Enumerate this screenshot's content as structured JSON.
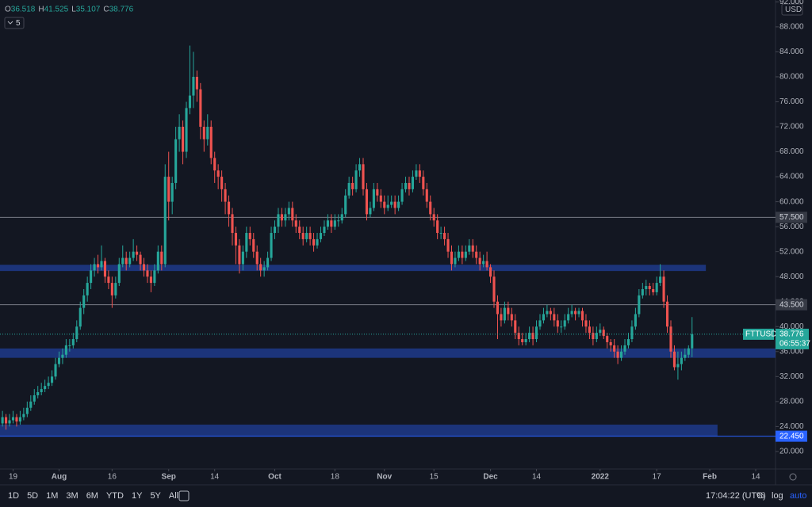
{
  "chart_data": {
    "type": "candlestick",
    "symbol": "FTTUSD",
    "currency": "USD",
    "indicator_count": "5",
    "ohlc_keys": [
      "O",
      "H",
      "L",
      "C"
    ],
    "up_color": "#26a69a",
    "down_color": "#ef5350",
    "grid": false,
    "ylim": [
      17.2,
      92.3
    ],
    "yticks": [
      {
        "value": 20,
        "label": "20.000"
      },
      {
        "value": 24,
        "label": "24.000"
      },
      {
        "value": 28,
        "label": "28.000"
      },
      {
        "value": 32,
        "label": "32.000"
      },
      {
        "value": 36,
        "label": "36.000"
      },
      {
        "value": 40,
        "label": "40.000"
      },
      {
        "value": 44,
        "label": "44.000"
      },
      {
        "value": 48,
        "label": "48.000"
      },
      {
        "value": 52,
        "label": "52.000"
      },
      {
        "value": 56,
        "label": "56.000"
      },
      {
        "value": 60,
        "label": "60.000"
      },
      {
        "value": 64,
        "label": "64.000"
      },
      {
        "value": 68,
        "label": "68.000"
      },
      {
        "value": 72,
        "label": "72.000"
      },
      {
        "value": 76,
        "label": "76.000"
      },
      {
        "value": 80,
        "label": "80.000"
      },
      {
        "value": 84,
        "label": "84.000"
      },
      {
        "value": 88,
        "label": "88.000"
      },
      {
        "value": 92,
        "label": "92.000"
      }
    ],
    "xlim": [
      -0.7,
      218.6
    ],
    "xticks": [
      {
        "value": 3,
        "label": "19"
      },
      {
        "value": 16,
        "label": "Aug"
      },
      {
        "value": 31,
        "label": "16"
      },
      {
        "value": 47,
        "label": "Sep"
      },
      {
        "value": 60,
        "label": "14"
      },
      {
        "value": 77,
        "label": "Oct"
      },
      {
        "value": 94,
        "label": "18"
      },
      {
        "value": 108,
        "label": "Nov"
      },
      {
        "value": 122,
        "label": "15"
      },
      {
        "value": 138,
        "label": "Dec"
      },
      {
        "value": 151,
        "label": "14"
      },
      {
        "value": 169,
        "label": "2022"
      },
      {
        "value": 185,
        "label": "17"
      },
      {
        "value": 200,
        "label": "Feb"
      },
      {
        "value": 213,
        "label": "14"
      }
    ],
    "levels": [
      {
        "value": 57.5,
        "label": "57.500",
        "color": "#787b86"
      },
      {
        "value": 43.5,
        "label": "43.500",
        "color": "#787b86"
      }
    ],
    "zones": [
      {
        "low": 48.9,
        "high": 49.9,
        "end": 198.9,
        "color": "#1e3a8a"
      },
      {
        "low": 35,
        "high": 36.5,
        "color": "#1e3a8a"
      },
      {
        "low": 22.45,
        "high": 24.3,
        "end": 202.2,
        "color": "#1e3a8a",
        "label": "22.450"
      }
    ],
    "countdown": "06:55:37",
    "candles": [
      [
        24.5,
        26.5,
        24,
        25.5
      ],
      [
        25.5,
        26,
        23.5,
        24.5
      ],
      [
        24.5,
        26,
        24,
        25
      ],
      [
        25,
        26.5,
        24.5,
        25.5
      ],
      [
        25.5,
        26,
        24,
        24.8
      ],
      [
        24.8,
        26.5,
        24.3,
        25.5
      ],
      [
        25.5,
        27,
        25,
        26
      ],
      [
        26,
        28,
        25.5,
        27
      ],
      [
        27,
        29,
        26.5,
        28
      ],
      [
        28,
        30,
        27.5,
        29
      ],
      [
        29,
        30.5,
        28.5,
        29.5
      ],
      [
        29.5,
        31,
        29,
        30
      ],
      [
        30,
        31.5,
        29.5,
        30.5
      ],
      [
        30.5,
        32,
        30,
        31
      ],
      [
        31,
        33,
        30.5,
        32
      ],
      [
        32,
        35,
        31.5,
        34
      ],
      [
        34,
        36,
        33.5,
        35
      ],
      [
        35,
        36.5,
        34,
        35.5
      ],
      [
        35.5,
        38,
        35,
        37
      ],
      [
        37,
        38,
        36,
        37
      ],
      [
        37,
        39,
        36.5,
        38
      ],
      [
        38,
        41,
        37.5,
        40
      ],
      [
        40,
        44,
        39.5,
        43
      ],
      [
        43,
        46,
        42,
        45
      ],
      [
        45,
        48,
        44,
        47
      ],
      [
        47,
        50,
        46,
        49
      ],
      [
        49,
        51,
        48,
        50
      ],
      [
        50,
        51.5,
        48.5,
        49.5
      ],
      [
        49.5,
        53,
        49,
        50.5
      ],
      [
        50.5,
        51,
        47,
        48
      ],
      [
        48,
        49,
        46,
        47
      ],
      [
        47,
        48,
        43,
        45
      ],
      [
        45,
        48,
        44.5,
        47
      ],
      [
        47,
        51,
        46.5,
        50
      ],
      [
        50,
        53,
        49.5,
        51
      ],
      [
        51,
        52,
        49,
        50
      ],
      [
        50,
        52,
        49.5,
        51
      ],
      [
        51,
        54,
        50.5,
        52
      ],
      [
        52,
        53,
        50.5,
        51.5
      ],
      [
        51.5,
        52,
        49,
        50
      ],
      [
        50,
        51,
        48,
        49
      ],
      [
        49,
        50,
        47,
        48
      ],
      [
        48,
        49,
        45.5,
        47
      ],
      [
        47,
        50,
        46.5,
        49
      ],
      [
        49,
        53,
        48.5,
        52
      ],
      [
        52,
        53,
        49,
        50
      ],
      [
        50,
        66,
        49.5,
        64
      ],
      [
        64,
        68,
        57,
        60
      ],
      [
        60,
        64,
        58,
        63
      ],
      [
        63,
        72,
        62,
        70
      ],
      [
        70,
        74,
        68,
        72
      ],
      [
        72,
        73,
        66,
        68
      ],
      [
        68,
        76,
        67,
        75
      ],
      [
        75,
        85,
        74,
        77
      ],
      [
        77,
        84,
        75,
        80
      ],
      [
        80,
        81,
        76,
        78
      ],
      [
        78,
        79,
        70,
        72
      ],
      [
        72,
        73,
        68,
        70
      ],
      [
        70,
        74,
        69,
        72
      ],
      [
        72,
        73,
        66,
        67
      ],
      [
        67,
        68,
        63,
        65
      ],
      [
        65,
        66,
        62,
        64
      ],
      [
        64,
        65,
        60,
        62
      ],
      [
        62,
        63,
        58,
        60
      ],
      [
        60,
        61,
        56,
        58
      ],
      [
        58,
        59,
        53,
        55
      ],
      [
        55,
        56,
        50,
        53
      ],
      [
        53,
        54,
        48.5,
        50
      ],
      [
        50,
        53,
        49,
        52
      ],
      [
        52,
        56,
        51,
        55
      ],
      [
        55,
        56,
        53,
        54
      ],
      [
        54,
        55,
        51,
        52
      ],
      [
        52,
        53,
        49,
        50
      ],
      [
        50,
        51,
        48,
        49
      ],
      [
        49,
        50.5,
        48,
        49.5
      ],
      [
        49.5,
        52,
        49,
        51
      ],
      [
        51,
        56,
        50.5,
        55
      ],
      [
        55,
        57,
        54,
        56
      ],
      [
        56,
        59,
        55,
        58
      ],
      [
        58,
        59,
        56,
        57
      ],
      [
        57,
        59,
        56,
        58
      ],
      [
        58,
        60,
        57,
        59
      ],
      [
        59,
        60,
        56,
        57
      ],
      [
        57,
        58,
        55,
        56
      ],
      [
        56,
        57,
        54,
        55
      ],
      [
        55,
        56,
        53,
        54
      ],
      [
        54,
        56,
        53.5,
        55
      ],
      [
        55,
        56,
        53,
        54
      ],
      [
        54,
        55,
        52,
        53
      ],
      [
        53,
        55,
        52.5,
        54
      ],
      [
        54,
        56,
        53.5,
        55
      ],
      [
        55,
        57,
        54.5,
        56
      ],
      [
        56,
        58,
        55.5,
        57
      ],
      [
        57,
        58,
        55,
        56
      ],
      [
        56,
        58,
        55.5,
        57
      ],
      [
        57,
        58,
        56,
        57
      ],
      [
        57,
        59,
        56.5,
        58
      ],
      [
        58,
        62,
        57.5,
        61
      ],
      [
        61,
        64,
        60.5,
        63
      ],
      [
        63,
        64,
        61,
        62
      ],
      [
        62,
        66,
        61.5,
        65
      ],
      [
        65,
        67,
        64,
        66
      ],
      [
        66,
        67,
        61,
        62
      ],
      [
        62,
        63,
        57,
        58
      ],
      [
        58,
        60,
        57.5,
        59
      ],
      [
        59,
        63,
        58.5,
        62
      ],
      [
        62,
        63,
        60,
        61
      ],
      [
        61,
        62,
        59,
        60
      ],
      [
        60,
        61,
        58,
        59
      ],
      [
        59,
        61,
        58.5,
        59.5
      ],
      [
        59.5,
        61,
        59,
        60
      ],
      [
        60,
        61,
        58,
        59
      ],
      [
        59,
        61,
        58.5,
        60
      ],
      [
        60,
        63,
        59.5,
        62
      ],
      [
        62,
        64,
        61.5,
        63
      ],
      [
        63,
        64,
        61,
        62
      ],
      [
        62,
        65,
        61.5,
        64
      ],
      [
        64,
        66,
        63.5,
        65
      ],
      [
        65,
        66,
        63,
        64
      ],
      [
        64,
        65,
        61,
        62
      ],
      [
        62,
        63,
        59,
        60
      ],
      [
        60,
        61,
        57,
        58
      ],
      [
        58,
        59,
        56,
        57
      ],
      [
        57,
        58,
        54,
        55
      ],
      [
        55,
        56,
        54,
        55
      ],
      [
        55,
        56,
        53,
        54
      ],
      [
        54,
        55,
        51,
        52
      ],
      [
        52,
        53,
        49,
        50
      ],
      [
        50,
        52,
        49.5,
        51
      ],
      [
        51,
        53,
        50.5,
        52
      ],
      [
        52,
        53,
        50,
        51
      ],
      [
        51,
        53,
        50.5,
        52
      ],
      [
        52,
        54,
        51.5,
        53
      ],
      [
        53,
        54,
        51,
        52
      ],
      [
        52,
        53,
        50,
        51
      ],
      [
        51,
        52,
        49,
        50
      ],
      [
        50,
        51.5,
        49.5,
        50.5
      ],
      [
        50.5,
        52,
        49,
        49.5
      ],
      [
        49.5,
        50,
        47,
        48
      ],
      [
        48,
        49,
        43,
        44
      ],
      [
        44,
        45,
        38,
        42
      ],
      [
        42,
        43,
        40,
        41
      ],
      [
        41,
        44,
        40.5,
        43
      ],
      [
        43,
        44,
        41,
        42
      ],
      [
        42,
        43,
        40,
        41
      ],
      [
        41,
        42,
        38,
        39
      ],
      [
        39,
        40,
        37,
        38
      ],
      [
        38,
        39,
        37,
        37.5
      ],
      [
        37.5,
        39,
        37,
        38
      ],
      [
        38,
        40,
        37.5,
        39
      ],
      [
        39,
        40,
        37,
        38
      ],
      [
        38,
        41,
        37.5,
        40
      ],
      [
        40,
        42,
        39.5,
        41
      ],
      [
        41,
        43,
        40.5,
        42
      ],
      [
        42,
        43.5,
        41.5,
        42.5
      ],
      [
        42.5,
        43,
        41,
        42
      ],
      [
        42,
        43,
        40,
        41
      ],
      [
        41,
        42,
        39,
        40
      ],
      [
        40,
        41,
        39,
        40
      ],
      [
        40,
        42,
        39.5,
        41
      ],
      [
        41,
        43,
        40.5,
        42
      ],
      [
        42,
        43.5,
        41.5,
        42.5
      ],
      [
        42.5,
        43,
        41,
        42
      ],
      [
        42,
        43,
        41.5,
        42.5
      ],
      [
        42.5,
        43,
        40,
        41
      ],
      [
        41,
        42,
        39,
        40
      ],
      [
        40,
        41,
        38,
        39
      ],
      [
        39,
        40,
        37,
        38
      ],
      [
        38,
        40,
        37.5,
        39
      ],
      [
        39,
        40.5,
        38.5,
        39.5
      ],
      [
        39.5,
        40,
        38,
        38.5
      ],
      [
        38.5,
        39,
        36.5,
        37.5
      ],
      [
        37.5,
        38,
        36,
        37
      ],
      [
        37,
        38,
        35,
        36
      ],
      [
        36,
        37,
        34,
        35
      ],
      [
        35,
        37,
        34.5,
        36
      ],
      [
        36,
        38,
        35.5,
        37
      ],
      [
        37,
        39,
        36.5,
        38
      ],
      [
        38,
        41,
        37.5,
        40
      ],
      [
        40,
        43,
        39.5,
        42
      ],
      [
        42,
        46,
        41.5,
        45
      ],
      [
        45,
        47,
        44.5,
        46
      ],
      [
        46,
        47.5,
        45,
        46.5
      ],
      [
        46.5,
        47,
        45,
        46
      ],
      [
        46,
        47,
        45,
        45.5
      ],
      [
        45.5,
        48,
        45,
        47
      ],
      [
        47,
        50,
        46.5,
        48
      ],
      [
        48,
        49,
        43,
        44
      ],
      [
        44,
        45,
        39,
        40
      ],
      [
        40,
        41,
        35,
        36
      ],
      [
        36,
        37,
        33,
        33.5
      ],
      [
        33.5,
        36,
        31.5,
        34
      ],
      [
        34,
        36,
        33,
        35
      ],
      [
        35,
        36.5,
        34.5,
        35.5
      ],
      [
        35.5,
        37,
        35,
        36.518
      ],
      [
        36.518,
        41.525,
        35.107,
        38.776
      ]
    ]
  },
  "toolbar": {
    "ranges": [
      "1D",
      "5D",
      "1M",
      "3M",
      "6M",
      "YTD",
      "1Y",
      "5Y",
      "All"
    ],
    "clock": "17:04:22 (UTC)",
    "options": [
      "%",
      "log",
      "auto"
    ]
  }
}
